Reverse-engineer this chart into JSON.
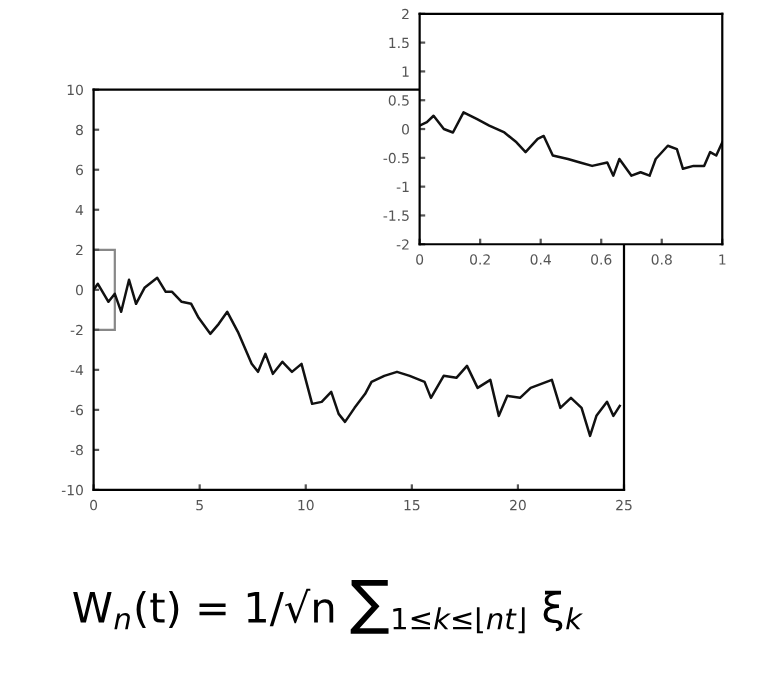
{
  "chart_data": [
    {
      "type": "line",
      "xlim": [
        0,
        25
      ],
      "ylim": [
        -10,
        10
      ],
      "xticks": [
        0,
        5,
        10,
        15,
        20,
        25
      ],
      "yticks": [
        -10,
        -8,
        -6,
        -4,
        -2,
        0,
        2,
        4,
        6,
        8,
        10
      ],
      "grid": false,
      "marker": "none",
      "line_style": "solid",
      "annotations": [
        "W$_{n}$(t) = 1/√n ∑$_{1≤k≤⌊nt⌋}$ ξ$_{k}$"
      ],
      "series": [
        {
          "color": "#111111",
          "x": [
            0,
            0.2,
            0.7,
            1.0,
            1.3,
            1.67,
            2.0,
            2.4,
            3.0,
            3.4,
            3.7,
            4.15,
            4.6,
            4.95,
            5.5,
            5.9,
            6.3,
            6.8,
            7.45,
            7.75,
            8.1,
            8.45,
            8.9,
            9.35,
            9.8,
            10.3,
            10.75,
            11.2,
            11.55,
            11.85,
            12.3,
            12.8,
            13.1,
            13.7,
            14.3,
            14.9,
            15.6,
            15.9,
            16.5,
            17.1,
            17.6,
            18.1,
            18.7,
            19.1,
            19.5,
            20.1,
            20.6,
            21.1,
            21.6,
            22.0,
            22.5,
            23.0,
            23.4,
            23.7,
            24.2,
            24.5,
            24.8
          ],
          "values": [
            0,
            0.3,
            -0.6,
            -0.2,
            -1.1,
            0.5,
            -0.7,
            0.1,
            0.6,
            -0.1,
            -0.1,
            -0.6,
            -0.7,
            -1.4,
            -2.2,
            -1.7,
            -1.1,
            -2.1,
            -3.7,
            -4.1,
            -3.2,
            -4.2,
            -3.6,
            -4.1,
            -3.7,
            -5.7,
            -5.6,
            -5.1,
            -6.2,
            -6.6,
            -5.9,
            -5.2,
            -4.6,
            -4.3,
            -4.1,
            -4.3,
            -4.6,
            -5.4,
            -4.3,
            -4.4,
            -3.8,
            -4.9,
            -4.5,
            -6.3,
            -5.3,
            -5.4,
            -4.9,
            -4.7,
            -4.5,
            -5.9,
            -5.4,
            -5.9,
            -7.3,
            -6.3,
            -5.6,
            -6.3,
            -5.8
          ]
        }
      ]
    },
    {
      "type": "line",
      "xlim": [
        0,
        1
      ],
      "ylim": [
        -2,
        2
      ],
      "xticks": [
        0,
        0.2,
        0.4,
        0.6,
        0.8,
        1
      ],
      "yticks": [
        -2,
        -1.5,
        -1,
        -0.5,
        0,
        0.5,
        1,
        1.5,
        2
      ],
      "grid": false,
      "marker": "none",
      "line_style": "solid",
      "series": [
        {
          "color": "#111111",
          "x": [
            0,
            0.024,
            0.046,
            0.08,
            0.11,
            0.145,
            0.19,
            0.23,
            0.28,
            0.32,
            0.35,
            0.39,
            0.41,
            0.44,
            0.49,
            0.53,
            0.57,
            0.62,
            0.64,
            0.66,
            0.7,
            0.73,
            0.76,
            0.78,
            0.82,
            0.85,
            0.87,
            0.905,
            0.94,
            0.96,
            0.98,
            1.0
          ],
          "values": [
            0.06,
            0.12,
            0.23,
            0,
            -0.06,
            0.29,
            0.17,
            0.06,
            -0.06,
            -0.23,
            -0.4,
            -0.17,
            -0.12,
            -0.46,
            -0.52,
            -0.58,
            -0.64,
            -0.58,
            -0.81,
            -0.52,
            -0.81,
            -0.75,
            -0.81,
            -0.52,
            -0.29,
            -0.35,
            -0.69,
            -0.64,
            -0.64,
            -0.4,
            -0.46,
            -0.23
          ]
        }
      ]
    }
  ]
}
